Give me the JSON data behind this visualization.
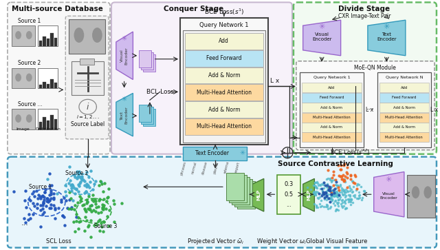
{
  "bg_color": "#ffffff",
  "panel_colors": {
    "multisource_bg": "#f5f5f5",
    "conquer_bg": "#f5f0f8",
    "divide_bg": "#f0faf0",
    "scl_bg": "#e8f5fb"
  },
  "query_network_layers": [
    "Add",
    "Feed Forward",
    "Add & Norm",
    "Multi-Head Attention",
    "Add & Norm",
    "Multi-Head Attention"
  ],
  "layer_colors": [
    "#f5f5d5",
    "#b8e4f4",
    "#f5f5d5",
    "#fdd9a0",
    "#f5f5d5",
    "#fdd9a0"
  ],
  "section_titles": {
    "multisource": "Multi-source Database",
    "conquer": "Conquer Stage",
    "divide": "Divide Stage",
    "scl": "Source Contrastive Learning"
  },
  "source_labels": [
    "Source 1",
    "Source 2",
    "Source ..."
  ],
  "visual_encoder_color": "#ccb8e8",
  "text_encoder_color": "#99ccdd",
  "mlp_color": "#77bb77",
  "weight_vector_color": "#cceeaa"
}
